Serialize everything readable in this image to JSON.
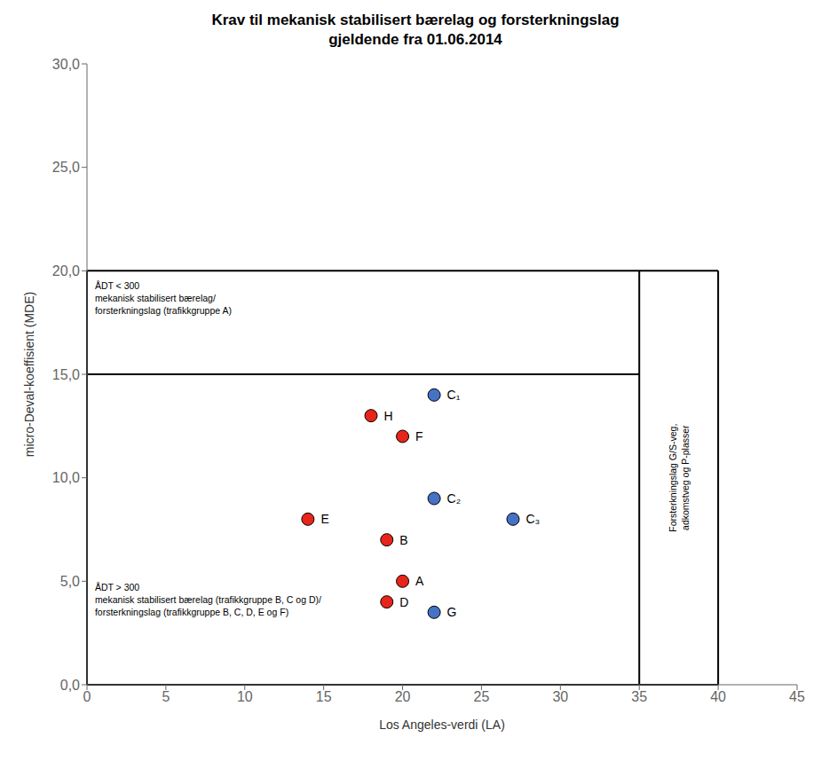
{
  "chart_data": {
    "type": "scatter",
    "title": "Krav til mekanisk stabilisert bærelag og forsterkningslag\ngjeldende fra 01.06.2014",
    "x_label": "Los Angeles-verdi (LA)",
    "y_label": "micro-Deval-koeffisient (MDE)",
    "xlim": [
      0,
      45
    ],
    "ylim": [
      0,
      30
    ],
    "xticks": [
      0,
      5,
      10,
      15,
      20,
      25,
      30,
      35,
      40,
      45
    ],
    "yticks": [
      {
        "value": 0.0,
        "label": "0,0"
      },
      {
        "value": 5.0,
        "label": "5,0"
      },
      {
        "value": 10.0,
        "label": "10,0"
      },
      {
        "value": 15.0,
        "label": "15,0"
      },
      {
        "value": 20.0,
        "label": "20,0"
      },
      {
        "value": 25.0,
        "label": "25,0"
      },
      {
        "value": 30.0,
        "label": "30,0"
      }
    ],
    "grid": false,
    "series": [
      {
        "color": "#e8251a",
        "x": [
          18.0,
          20.0,
          14.0,
          19.0,
          20.0,
          19.0
        ],
        "values": [
          13.0,
          12.0,
          8.0,
          7.0,
          5.0,
          4.0
        ],
        "labels": [
          "H",
          "F",
          "E",
          "B",
          "A",
          "D"
        ]
      },
      {
        "color": "#4472c4",
        "x": [
          22.0,
          22.0,
          27.0,
          22.0
        ],
        "values": [
          14.0,
          9.0,
          8.0,
          3.5
        ],
        "labels": [
          "C₁",
          "C₂",
          "C₃",
          "G"
        ]
      }
    ],
    "lines": [
      {
        "x": [
          0,
          40,
          40,
          0,
          0
        ],
        "y": [
          0,
          0,
          20,
          20,
          0
        ]
      },
      {
        "x": [
          0,
          35
        ],
        "y": [
          15,
          15
        ]
      },
      {
        "x": [
          35,
          35
        ],
        "y": [
          0,
          20
        ]
      }
    ],
    "annotations": [
      {
        "text": "ÅDT < 300\nmekanisk stabilisert bærelag/\nforsterkningslag (trafikkgruppe A)",
        "x": 0.5,
        "y": 19.6
      },
      {
        "text": "ÅDT > 300\nmekanisk stabilisert bærelag (trafikkgruppe B, C og D)/\nforsterkningslag (trafikkgruppe B, C, D, E og F)",
        "x": 0.5,
        "y": 3.2
      },
      {
        "text": "Forsterkningslag G/S-veg,\nadkomstveg og P-plasser",
        "x": 37.5,
        "y": 10.0,
        "orientation": "vertical"
      }
    ]
  }
}
